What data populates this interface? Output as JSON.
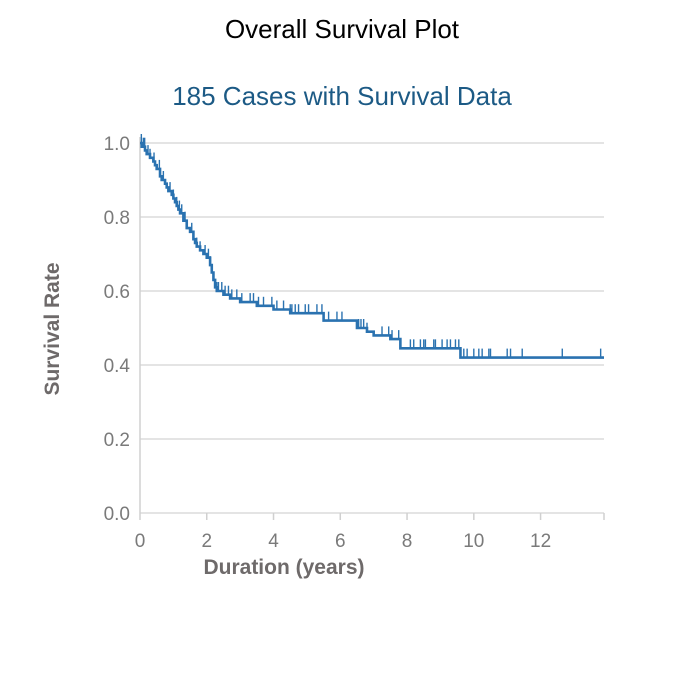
{
  "header": {
    "title": "Overall Survival Plot",
    "subtitle": "185 Cases with Survival Data"
  },
  "colors": {
    "subtitle": "#1c5a85",
    "series": "#2a72b0",
    "grid": "#dcdcdc",
    "axis": "#d0d0d0"
  },
  "chart_data": {
    "type": "line",
    "title": "Overall Survival Plot",
    "subtitle": "185 Cases with Survival Data",
    "xlabel": "Duration (years)",
    "ylabel": "Survival Rate",
    "xlim": [
      0,
      13.9
    ],
    "ylim": [
      0,
      1.0
    ],
    "xticks": [
      0,
      2,
      4,
      6,
      8,
      10,
      12
    ],
    "yticks": [
      0.0,
      0.2,
      0.4,
      0.6,
      0.8,
      1.0
    ],
    "xtick_labels": [
      "0",
      "2",
      "4",
      "6",
      "8",
      "10",
      "12"
    ],
    "ytick_labels": [
      "0.0",
      "0.2",
      "0.4",
      "0.6",
      "0.8",
      "1.0"
    ],
    "grid": true,
    "series": [
      {
        "style": "step",
        "x": [
          0,
          0.05,
          0.15,
          0.2,
          0.3,
          0.4,
          0.45,
          0.5,
          0.6,
          0.65,
          0.75,
          0.8,
          0.85,
          0.95,
          1.0,
          1.05,
          1.1,
          1.15,
          1.2,
          1.3,
          1.4,
          1.5,
          1.6,
          1.65,
          1.7,
          1.8,
          1.9,
          2.0,
          2.1,
          2.15,
          2.2,
          2.25,
          2.3,
          2.5,
          2.7,
          3.0,
          3.5,
          4.0,
          4.5,
          5.5,
          6.5,
          6.8,
          7.0,
          7.5,
          7.8,
          9.6,
          13.9
        ],
        "y": [
          1.0,
          0.99,
          0.98,
          0.97,
          0.96,
          0.95,
          0.94,
          0.93,
          0.91,
          0.9,
          0.89,
          0.88,
          0.87,
          0.86,
          0.85,
          0.84,
          0.83,
          0.82,
          0.81,
          0.79,
          0.77,
          0.76,
          0.74,
          0.73,
          0.72,
          0.71,
          0.7,
          0.69,
          0.67,
          0.65,
          0.63,
          0.61,
          0.6,
          0.59,
          0.58,
          0.57,
          0.56,
          0.55,
          0.54,
          0.52,
          0.5,
          0.49,
          0.48,
          0.47,
          0.445,
          0.42,
          0.42
        ],
        "censored": [
          0.04,
          0.1,
          0.14,
          0.24,
          0.3,
          0.42,
          0.58,
          0.7,
          0.9,
          1.0,
          1.1,
          1.18,
          1.25,
          1.35,
          1.55,
          1.7,
          1.8,
          1.95,
          2.05,
          2.1,
          2.3,
          2.35,
          2.45,
          2.55,
          2.65,
          2.75,
          2.9,
          3.05,
          3.3,
          3.4,
          3.55,
          3.7,
          3.95,
          4.1,
          4.3,
          4.5,
          4.55,
          4.65,
          4.75,
          4.95,
          5.05,
          5.3,
          5.45,
          5.65,
          5.9,
          6.05,
          6.55,
          6.62,
          6.7,
          6.8,
          7.25,
          7.45,
          7.55,
          7.75,
          8.1,
          8.2,
          8.4,
          8.5,
          8.55,
          8.8,
          8.85,
          9.05,
          9.2,
          9.3,
          9.45,
          9.55,
          9.7,
          9.8,
          10.0,
          10.15,
          10.25,
          10.45,
          10.5,
          11.0,
          11.1,
          11.45,
          12.65,
          13.8
        ]
      }
    ]
  }
}
